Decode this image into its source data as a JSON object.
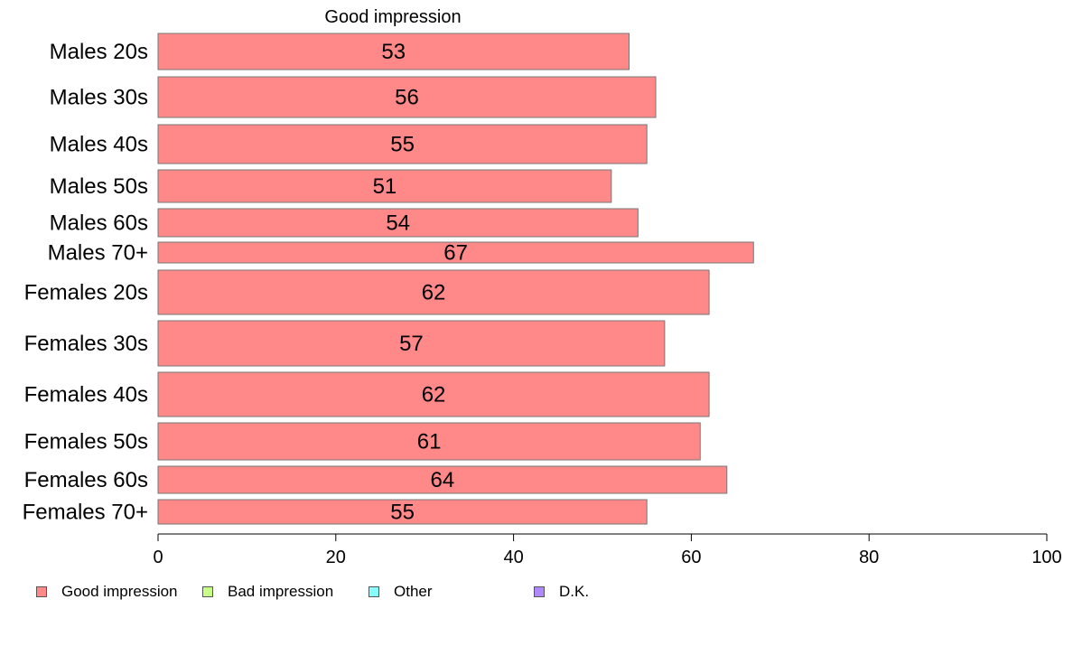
{
  "chart_data": {
    "type": "bar",
    "orientation": "horizontal",
    "stacked": true,
    "title": "Good impression",
    "categories": [
      "Males 20s",
      "Males 30s",
      "Males 40s",
      "Males 50s",
      "Males 60s",
      "Males 70+",
      "Females 20s",
      "Females 30s",
      "Females 40s",
      "Females 50s",
      "Females 60s",
      "Females 70+"
    ],
    "series": [
      {
        "name": "Good impression",
        "color": "#ff8888",
        "values": [
          53,
          56,
          55,
          51,
          54,
          67,
          62,
          57,
          62,
          61,
          64,
          55
        ],
        "labels": [
          "53",
          "56",
          "55",
          "51",
          "54",
          "67",
          "62",
          "57",
          "62",
          "61",
          "64",
          "55"
        ]
      }
    ],
    "xlim": [
      0,
      100
    ],
    "xticks": [
      "0",
      "20",
      "40",
      "60",
      "80",
      "100"
    ],
    "grid": false,
    "legend_position": "bottom"
  },
  "legend": [
    {
      "label": "Good impression",
      "color": "#ff8888"
    },
    {
      "label": "Bad impression",
      "color": "#c8ff88"
    },
    {
      "label": "Other",
      "color": "#88ffff"
    },
    {
      "label": "D.K.",
      "color": "#b088ff"
    }
  ]
}
